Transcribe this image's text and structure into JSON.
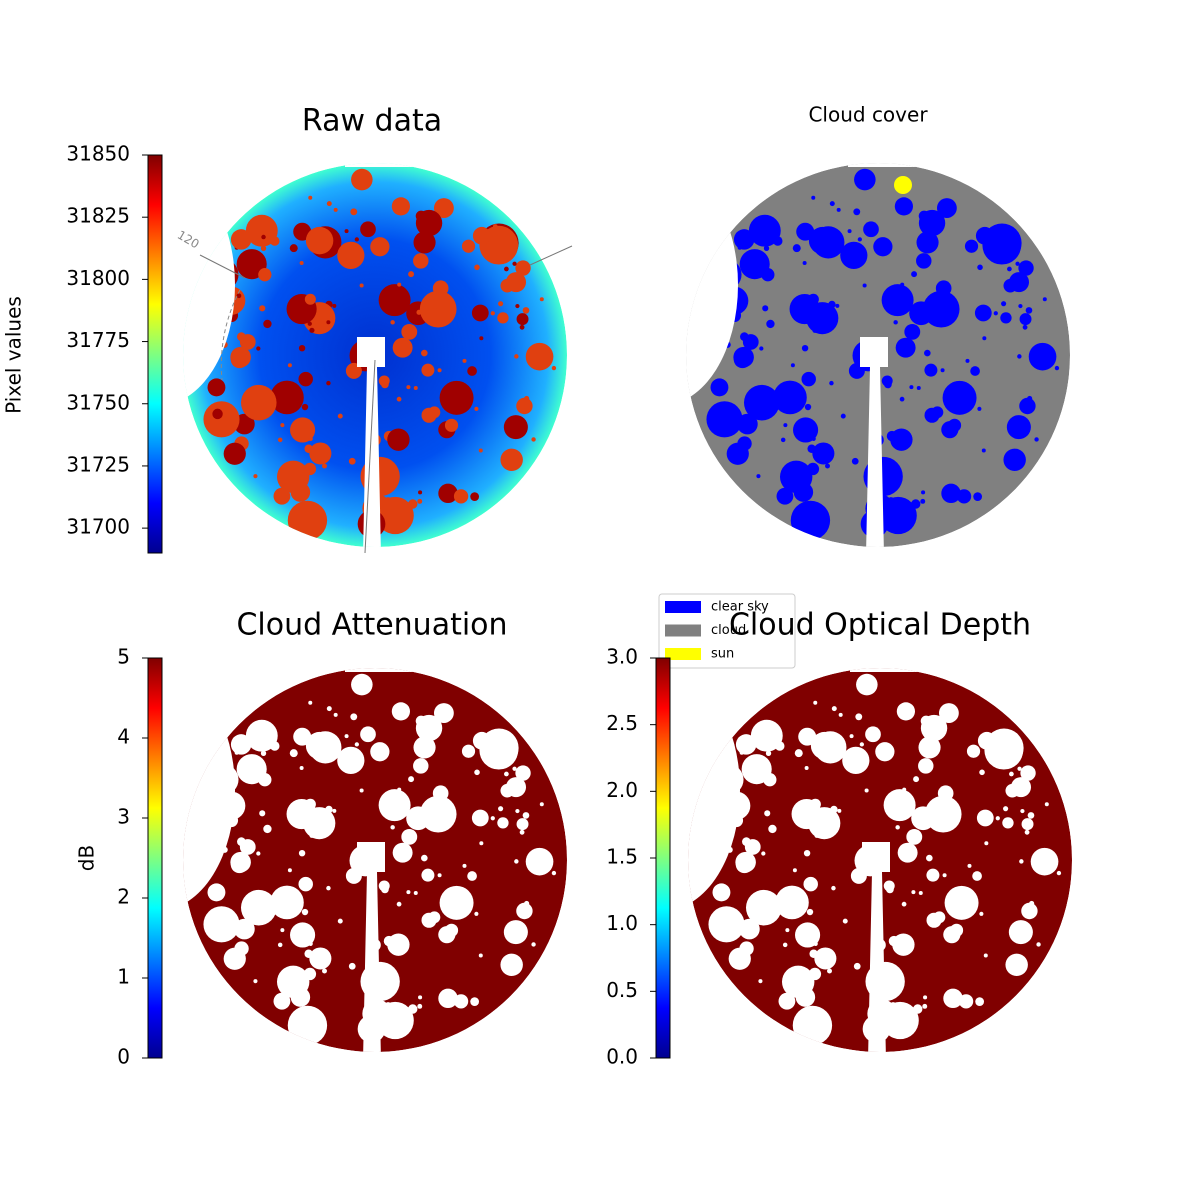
{
  "chart_data": [
    {
      "type": "image",
      "title": "Raw data",
      "annotations": [
        "120"
      ],
      "colorbar": {
        "label": "Pixel values",
        "colormap": "jet",
        "ylim": [
          31690,
          31850
        ],
        "yticks": [
          31700,
          31725,
          31750,
          31775,
          31800,
          31825,
          31850
        ]
      }
    },
    {
      "type": "image",
      "title": "Cloud cover",
      "series": [
        {
          "name": "clear sky",
          "color": "#0000ff"
        },
        {
          "name": "cloud",
          "color": "#808080"
        },
        {
          "name": "sun",
          "color": "#ffff00"
        }
      ]
    },
    {
      "type": "image",
      "title": "Cloud Attenuation",
      "colorbar": {
        "label": "dB",
        "colormap": "jet",
        "ylim": [
          0,
          5
        ],
        "yticks": [
          0,
          1,
          2,
          3,
          4,
          5
        ]
      }
    },
    {
      "type": "image",
      "title": "Cloud Optical Depth",
      "colorbar": {
        "colormap": "jet",
        "ylim": [
          0,
          3
        ],
        "yticks": [
          {
            "value": 0,
            "label": "0.0"
          },
          {
            "value": 0.5,
            "label": "0.5"
          },
          {
            "value": 1,
            "label": "1.0"
          },
          {
            "value": 1.5,
            "label": "1.5"
          },
          {
            "value": 2,
            "label": "2.0"
          },
          {
            "value": 2.5,
            "label": "2.5"
          },
          {
            "value": 3,
            "label": "3.0"
          }
        ]
      }
    }
  ]
}
